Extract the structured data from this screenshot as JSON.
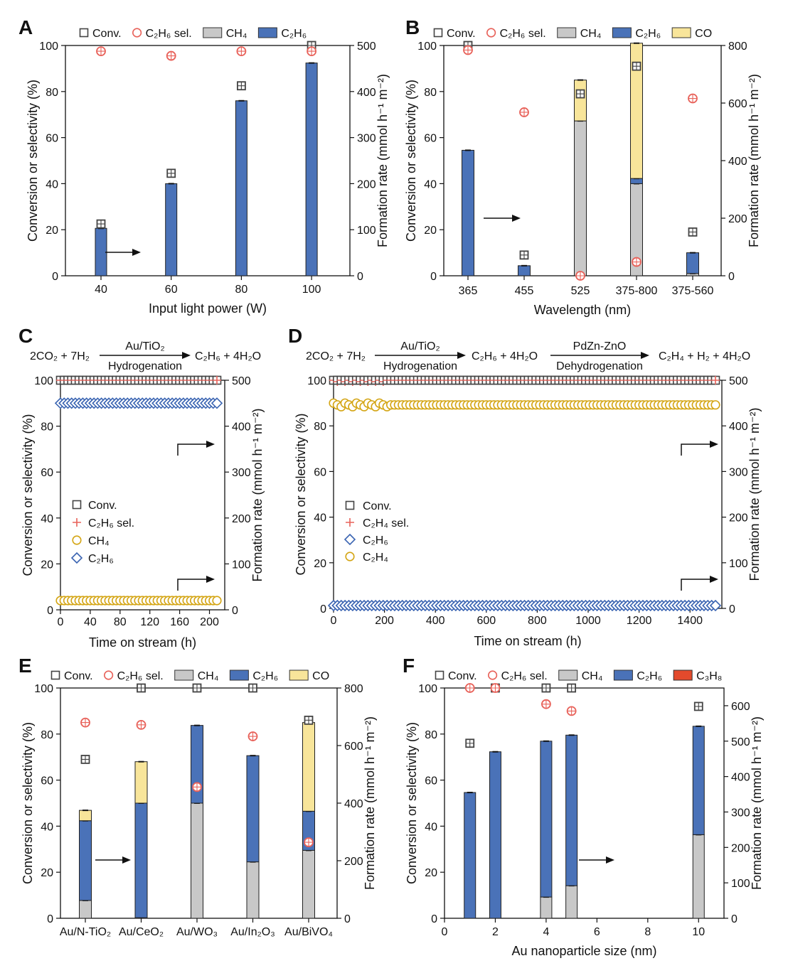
{
  "colors": {
    "ch4": "#c8c8c8",
    "c2h6": "#4a72b8",
    "co": "#f8e59a",
    "c3h8": "#e34a2c",
    "conv": "#444444",
    "sel": "#e8625a",
    "c2h6_line": "#3a64b2",
    "c2h4_line": "#d4a514",
    "ch4_line": "#d4a514"
  },
  "chart_data": [
    {
      "panel": "A",
      "type": "bar",
      "categories": [
        "40",
        "60",
        "80",
        "100"
      ],
      "xlabel": "Input light power (W)",
      "ylabel": "Conversion or selectivity (%)",
      "ylabel2": "Formation rate (mmol h⁻¹ m⁻²)",
      "ylim": [
        0,
        100
      ],
      "y2lim": [
        0,
        500
      ],
      "yticks": [
        0,
        20,
        40,
        60,
        80,
        100
      ],
      "y2ticks": [
        0,
        100,
        200,
        300,
        400,
        500
      ],
      "legend": [
        "Conv.",
        "C₂H₆ sel.",
        "CH₄",
        "C₂H₆"
      ],
      "series": [
        {
          "name": "Conv.",
          "values": [
            22.5,
            44.5,
            82.5,
            100
          ]
        },
        {
          "name": "C₂H₆ sel.",
          "values": [
            97.5,
            95.5,
            97.5,
            97.5
          ]
        },
        {
          "name": "CH₄",
          "values": [
            0,
            0,
            0,
            0
          ]
        },
        {
          "name": "C₂H₆",
          "values": [
            103,
            200,
            380,
            462
          ]
        }
      ]
    },
    {
      "panel": "B",
      "type": "bar",
      "categories": [
        "365",
        "455",
        "525",
        "375-800",
        "375-560"
      ],
      "xlabel": "Wavelength (nm)",
      "ylabel": "Conversion or selectivity (%)",
      "ylabel2": "Formation rate (mmol h⁻¹ m⁻²)",
      "ylim": [
        0,
        100
      ],
      "y2lim": [
        0,
        800
      ],
      "yticks": [
        0,
        20,
        40,
        60,
        80,
        100
      ],
      "y2ticks": [
        0,
        200,
        400,
        600,
        800
      ],
      "legend": [
        "Conv.",
        "C₂H₆ sel.",
        "CH₄",
        "C₂H₆",
        "CO"
      ],
      "series": [
        {
          "name": "Conv.",
          "values": [
            100,
            9,
            79,
            91,
            19
          ]
        },
        {
          "name": "C₂H₆ sel.",
          "values": [
            98,
            71,
            0,
            6,
            77
          ]
        },
        {
          "name": "CH₄",
          "values": [
            0,
            0,
            538,
            320,
            8
          ]
        },
        {
          "name": "C₂H₆",
          "values": [
            436,
            35,
            0,
            18,
            72
          ]
        },
        {
          "name": "CO",
          "values": [
            0,
            0,
            142,
            470,
            0
          ]
        }
      ]
    },
    {
      "panel": "C",
      "type": "scatter",
      "x_range": [
        0,
        210
      ],
      "xticks": [
        0,
        40,
        80,
        120,
        160,
        200
      ],
      "xlabel": "Time on stream (h)",
      "ylabel": "Conversion or selectivity (%)",
      "ylabel2": "Formation rate (mmol h⁻¹ m⁻²)",
      "ylim": [
        0,
        100
      ],
      "y2lim": [
        0,
        500
      ],
      "yticks": [
        0,
        20,
        40,
        60,
        80,
        100
      ],
      "y2ticks": [
        0,
        100,
        200,
        300,
        400,
        500
      ],
      "legend": [
        "Conv.",
        "C₂H₆ sel.",
        "CH₄",
        "C₂H₆"
      ],
      "series": [
        {
          "name": "Conv.",
          "value": 100
        },
        {
          "name": "C₂H₆ sel.",
          "value": 100
        },
        {
          "name": "CH₄",
          "value": 0
        },
        {
          "name": "C₂H₆",
          "value": 450
        }
      ],
      "equation": {
        "left": "2CO₂ + 7H₂",
        "catalyst": "Au/TiO₂",
        "step": "Hydrogenation",
        "right": "C₂H₆ + 4H₂O"
      }
    },
    {
      "panel": "D",
      "type": "scatter",
      "x_range": [
        0,
        1500
      ],
      "xticks": [
        0,
        200,
        400,
        600,
        800,
        1000,
        1200,
        1400
      ],
      "xlabel": "Time on stream (h)",
      "ylabel": "Conversion or selectivity (%)",
      "ylabel2": "Formation rate (mmol h⁻¹ m⁻²)",
      "ylim": [
        0,
        100
      ],
      "y2lim": [
        0,
        500
      ],
      "yticks": [
        0,
        20,
        40,
        60,
        80,
        100
      ],
      "y2ticks": [
        0,
        100,
        200,
        300,
        400,
        500
      ],
      "legend": [
        "Conv.",
        "C₂H₄ sel.",
        "C₂H₆",
        "C₂H₄"
      ],
      "series": [
        {
          "name": "Conv.",
          "value": 100
        },
        {
          "name": "C₂H₄ sel.",
          "value": 100
        },
        {
          "name": "C₂H₆",
          "value": 0
        },
        {
          "name": "C₂H₄",
          "value": 446
        }
      ],
      "equation": {
        "left": "2CO₂ + 7H₂",
        "catalyst1": "Au/TiO₂",
        "step1": "Hydrogenation",
        "middle": "C₂H₆ + 4H₂O",
        "catalyst2": "PdZn-ZnO",
        "step2": "Dehydrogenation",
        "right": "C₂H₄ + H₂ + 4H₂O"
      }
    },
    {
      "panel": "E",
      "type": "bar",
      "categories": [
        "Au/N-TiO₂",
        "Au/CeO₂",
        "Au/WO₃",
        "Au/In₂O₃",
        "Au/BiVO₄"
      ],
      "ylabel": "Conversion or selectivity (%)",
      "ylabel2": "Formation rate (mmol h⁻¹ m⁻²)",
      "ylim": [
        0,
        100
      ],
      "y2lim": [
        0,
        800
      ],
      "yticks": [
        0,
        20,
        40,
        60,
        80,
        100
      ],
      "y2ticks": [
        0,
        200,
        400,
        600,
        800
      ],
      "legend": [
        "Conv.",
        "C₂H₆ sel.",
        "CH₄",
        "C₂H₆",
        "CO"
      ],
      "series": [
        {
          "name": "Conv.",
          "values": [
            69,
            100,
            100,
            100,
            86
          ]
        },
        {
          "name": "C₂H₆ sel.",
          "values": [
            85,
            84,
            57,
            79,
            33
          ]
        },
        {
          "name": "CH₄",
          "values": [
            62,
            2,
            400,
            196,
            236
          ]
        },
        {
          "name": "C₂H₆",
          "values": [
            277,
            398,
            270,
            369,
            136
          ]
        },
        {
          "name": "CO",
          "values": [
            36,
            144,
            0,
            0,
            308
          ]
        }
      ]
    },
    {
      "panel": "F",
      "type": "bar",
      "x": [
        1,
        2,
        4,
        5,
        10
      ],
      "x_range": [
        0,
        11
      ],
      "xticks": [
        0,
        2,
        4,
        6,
        8,
        10
      ],
      "xlabel": "Au nanoparticle size (nm)",
      "ylabel": "Conversion or selectivity (%)",
      "ylabel2": "Formation rate (mmol h⁻¹ m⁻²)",
      "ylim": [
        0,
        100
      ],
      "y2lim": [
        0,
        650
      ],
      "yticks": [
        0,
        20,
        40,
        60,
        80,
        100
      ],
      "y2ticks": [
        0,
        100,
        200,
        300,
        400,
        500,
        600
      ],
      "legend": [
        "Conv.",
        "C₂H₆ sel.",
        "CH₄",
        "C₂H₆",
        "C₃H₈"
      ],
      "series": [
        {
          "name": "Conv.",
          "values": [
            76,
            100,
            100,
            100,
            92
          ]
        },
        {
          "name": "C₂H₆ sel.",
          "values": [
            100,
            100,
            93,
            90,
            null
          ]
        },
        {
          "name": "CH₄",
          "values": [
            0,
            0,
            60,
            92,
            236
          ]
        },
        {
          "name": "C₂H₆",
          "values": [
            355,
            470,
            440,
            425,
            306
          ]
        },
        {
          "name": "C₃H₈",
          "values": [
            0,
            0,
            0,
            0,
            0
          ]
        }
      ]
    }
  ]
}
